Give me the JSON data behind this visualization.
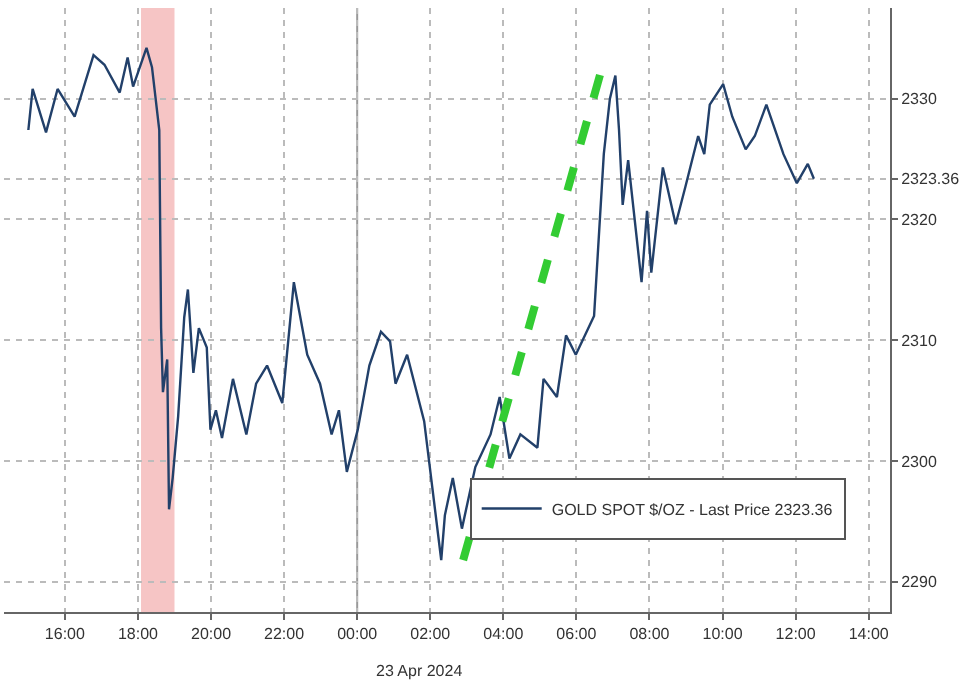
{
  "chart_data": {
    "type": "line",
    "x": [
      "2024-04-22T15:00",
      "2024-04-22T15:07",
      "2024-04-22T15:29",
      "2024-04-22T15:48",
      "2024-04-22T16:16",
      "2024-04-22T16:47",
      "2024-04-22T17:05",
      "2024-04-22T17:30",
      "2024-04-22T17:43",
      "2024-04-22T17:52",
      "2024-04-22T18:14",
      "2024-04-22T18:23",
      "2024-04-22T18:35",
      "2024-04-22T18:38",
      "2024-04-22T18:41",
      "2024-04-22T18:48",
      "2024-04-22T18:51",
      "2024-04-22T18:57",
      "2024-04-22T19:06",
      "2024-04-22T19:16",
      "2024-04-22T19:22",
      "2024-04-22T19:31",
      "2024-04-22T19:40",
      "2024-04-22T19:53",
      "2024-04-22T19:59",
      "2024-04-22T20:08",
      "2024-04-22T20:18",
      "2024-04-22T20:36",
      "2024-04-22T20:58",
      "2024-04-22T21:14",
      "2024-04-22T21:32",
      "2024-04-22T21:57",
      "2024-04-22T22:16",
      "2024-04-22T22:38",
      "2024-04-22T22:59",
      "2024-04-22T23:18",
      "2024-04-22T23:30",
      "2024-04-22T23:43",
      "2024-04-23T00:01",
      "2024-04-23T00:20",
      "2024-04-23T00:39",
      "2024-04-23T00:54",
      "2024-04-23T01:03",
      "2024-04-23T01:22",
      "2024-04-23T01:50",
      "2024-04-23T02:18",
      "2024-04-23T02:24",
      "2024-04-23T02:37",
      "2024-04-23T02:52",
      "2024-04-23T03:14",
      "2024-04-23T03:39",
      "2024-04-23T03:54",
      "2024-04-23T04:10",
      "2024-04-23T04:28",
      "2024-04-23T04:56",
      "2024-04-23T05:06",
      "2024-04-23T05:28",
      "2024-04-23T05:43",
      "2024-04-23T05:59",
      "2024-04-23T06:29",
      "2024-04-23T06:45",
      "2024-04-23T06:55",
      "2024-04-23T07:04",
      "2024-04-23T07:10",
      "2024-04-23T07:16",
      "2024-04-23T07:25",
      "2024-04-23T07:47",
      "2024-04-23T07:56",
      "2024-04-23T08:03",
      "2024-04-23T08:22",
      "2024-04-23T08:43",
      "2024-04-23T08:59",
      "2024-04-23T09:20",
      "2024-04-23T09:30",
      "2024-04-23T09:39",
      "2024-04-23T10:01",
      "2024-04-23T10:16",
      "2024-04-23T10:38",
      "2024-04-23T10:53",
      "2024-04-23T11:12",
      "2024-04-23T11:40",
      "2024-04-23T12:02",
      "2024-04-23T12:20",
      "2024-04-23T12:30"
    ],
    "series": [
      {
        "name": "GOLD SPOT $/OZ - Last Price 2323.36",
        "color": "#22406a",
        "values": [
          2327.4,
          2330.8,
          2327.2,
          2330.8,
          2328.5,
          2333.6,
          2332.8,
          2330.5,
          2333.4,
          2331,
          2334.2,
          2332.6,
          2327.4,
          2311,
          2305.7,
          2308.4,
          2296,
          2298.6,
          2303.7,
          2311.9,
          2314.2,
          2307.3,
          2311,
          2309.4,
          2302.6,
          2304.2,
          2301.9,
          2306.8,
          2302.2,
          2306.4,
          2307.9,
          2304.8,
          2314.8,
          2308.8,
          2306.4,
          2302.2,
          2304.2,
          2299.1,
          2302.6,
          2307.9,
          2310.7,
          2309.9,
          2306.4,
          2308.8,
          2303.3,
          2291.8,
          2295.5,
          2298.6,
          2294.4,
          2299.5,
          2302.2,
          2305.3,
          2300.2,
          2302.2,
          2301.1,
          2306.8,
          2305.3,
          2310.4,
          2308.8,
          2312,
          2325.4,
          2330,
          2331.9,
          2327.4,
          2321.2,
          2324.9,
          2314.8,
          2320.7,
          2315.6,
          2324.3,
          2319.6,
          2322.7,
          2326.9,
          2325.4,
          2329.5,
          2331.2,
          2328.5,
          2325.8,
          2326.9,
          2329.5,
          2325.4,
          2323,
          2324.6,
          2323.36
        ]
      },
      {
        "type": "line",
        "x": [
          "2024-04-23T02:54",
          "2024-04-23T06:39"
        ],
        "color": "#33cc33",
        "line_style": "dashed",
        "values": [
          2291.8,
          2332
        ]
      }
    ],
    "xlim": [
      "2024-04-22T14:20",
      "2024-04-23T14:35"
    ],
    "xticks": [
      {
        "value": "2024-04-22T16:00",
        "label": "16:00"
      },
      {
        "value": "2024-04-22T18:00",
        "label": "18:00"
      },
      {
        "value": "2024-04-22T20:00",
        "label": "20:00"
      },
      {
        "value": "2024-04-22T22:00",
        "label": "22:00"
      },
      {
        "value": "2024-04-23T00:00",
        "label": "00:00"
      },
      {
        "value": "2024-04-23T02:00",
        "label": "02:00"
      },
      {
        "value": "2024-04-23T04:00",
        "label": "04:00"
      },
      {
        "value": "2024-04-23T06:00",
        "label": "06:00"
      },
      {
        "value": "2024-04-23T08:00",
        "label": "08:00"
      },
      {
        "value": "2024-04-23T10:00",
        "label": "10:00"
      },
      {
        "value": "2024-04-23T12:00",
        "label": "12:00"
      },
      {
        "value": "2024-04-23T14:00",
        "label": "14:00"
      }
    ],
    "ylim": [
      2287.5,
      2337.5
    ],
    "yticks": [
      2290,
      2300,
      2310,
      2320,
      {
        "value": 2323.36,
        "label": "2323.36"
      },
      2330
    ],
    "grid": true,
    "legend": "bottom right",
    "line_style": "solid",
    "ref_lines": [
      {
        "axis": "x",
        "value": "2024-04-23T00:00",
        "color": "#999999",
        "line_style": "solid"
      }
    ],
    "bands": [
      {
        "axis": "x",
        "from": "2024-04-22T18:05",
        "to": "2024-04-22T19:00",
        "color": "#f4b6b6"
      }
    ],
    "annotations": [
      "23 Apr 2024"
    ]
  }
}
